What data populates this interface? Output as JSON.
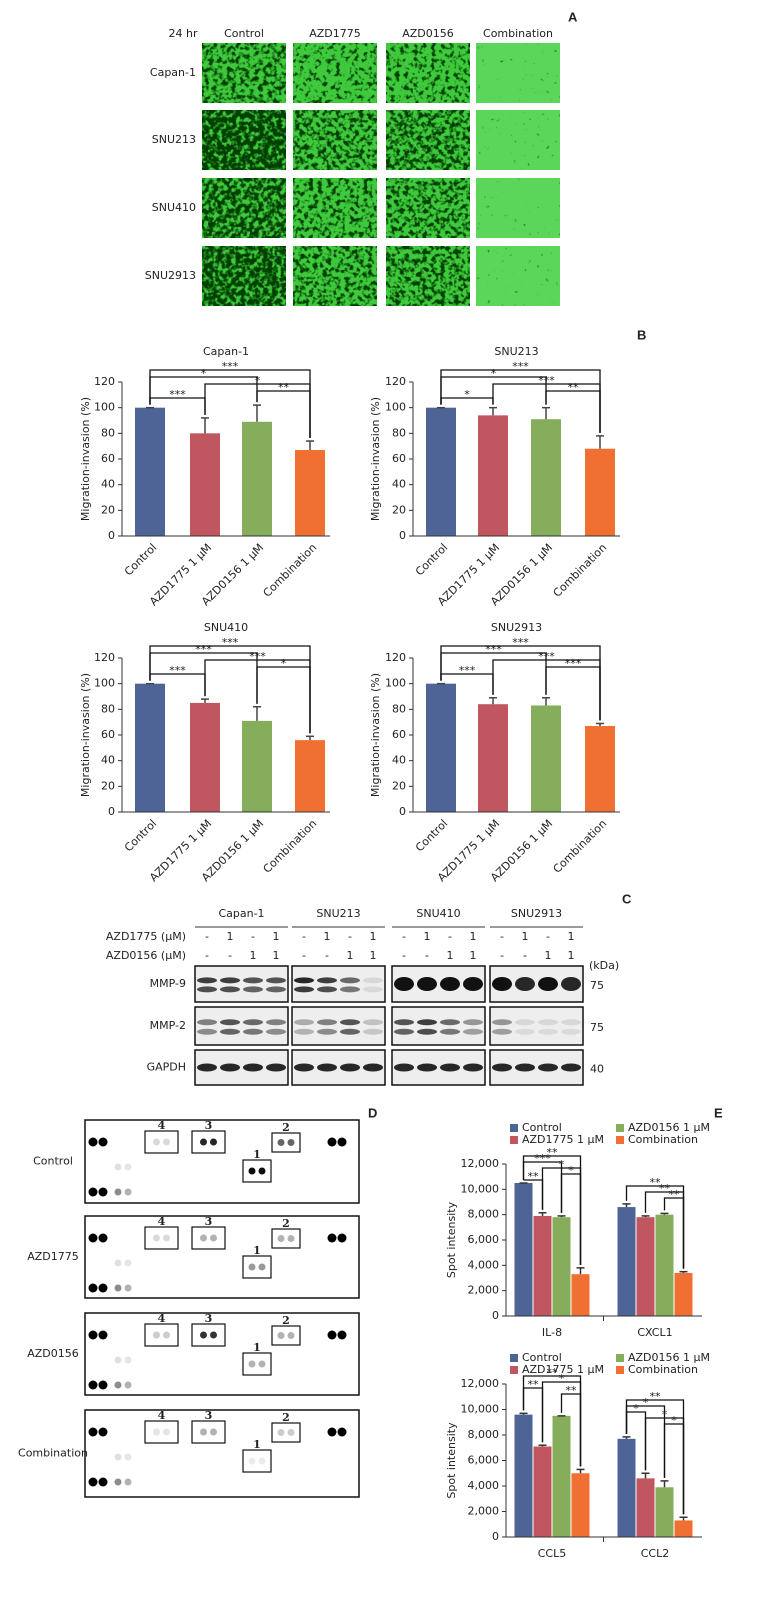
{
  "panel_a": {
    "label": "A",
    "time": "24 hr",
    "columns": [
      "Control",
      "AZD1775",
      "AZD0156",
      "Combination"
    ],
    "rows": [
      "Capan-1",
      "SNU213",
      "SNU410",
      "SNU2913"
    ]
  },
  "panel_b_label": "B",
  "chart_data": [
    {
      "type": "bar",
      "title": "Capan-1",
      "y_label": "Migration-invasion (%)",
      "categories": [
        "Control",
        "AZD1775 1 μM",
        "AZD0156 1 μM",
        "Combination"
      ],
      "values": [
        100,
        80,
        89,
        67
      ],
      "errors": [
        0,
        12,
        13,
        7
      ],
      "colors": [
        "#4e6497",
        "#c0565f",
        "#86ad5c",
        "#f07033"
      ],
      "ylim": [
        0,
        120
      ],
      "yticks": [
        0,
        20,
        40,
        60,
        80,
        100,
        120
      ],
      "significance": [
        {
          "label": "***",
          "bars": [
            0,
            3
          ]
        },
        {
          "label": "*",
          "bars": [
            0,
            2
          ]
        },
        {
          "label": "*",
          "bars": [
            1,
            3
          ]
        },
        {
          "label": "**",
          "bars": [
            2,
            3
          ]
        },
        {
          "label": "***",
          "bars": [
            0,
            1
          ]
        }
      ]
    },
    {
      "type": "bar",
      "title": "SNU213",
      "y_label": "Migration-invasion (%)",
      "categories": [
        "Control",
        "AZD1775 1 μM",
        "AZD0156 1 μM",
        "Combination"
      ],
      "values": [
        100,
        94,
        91,
        68
      ],
      "errors": [
        0,
        6,
        9,
        10
      ],
      "colors": [
        "#4e6497",
        "#c0565f",
        "#86ad5c",
        "#f07033"
      ],
      "ylim": [
        0,
        120
      ],
      "yticks": [
        0,
        20,
        40,
        60,
        80,
        100,
        120
      ],
      "significance": [
        {
          "label": "***",
          "bars": [
            0,
            3
          ]
        },
        {
          "label": "*",
          "bars": [
            0,
            2
          ]
        },
        {
          "label": "***",
          "bars": [
            1,
            3
          ]
        },
        {
          "label": "**",
          "bars": [
            2,
            3
          ]
        },
        {
          "label": "*",
          "bars": [
            0,
            1
          ]
        }
      ]
    },
    {
      "type": "bar",
      "title": "SNU410",
      "y_label": "Migration-invasion (%)",
      "categories": [
        "Control",
        "AZD1775 1 μM",
        "AZD0156 1 μM",
        "Combination"
      ],
      "values": [
        100,
        85,
        71,
        56
      ],
      "errors": [
        0,
        3,
        11,
        3
      ],
      "colors": [
        "#4e6497",
        "#c0565f",
        "#86ad5c",
        "#f07033"
      ],
      "ylim": [
        0,
        120
      ],
      "yticks": [
        0,
        20,
        40,
        60,
        80,
        100,
        120
      ],
      "significance": [
        {
          "label": "***",
          "bars": [
            0,
            3
          ]
        },
        {
          "label": "***",
          "bars": [
            0,
            2
          ]
        },
        {
          "label": "***",
          "bars": [
            1,
            3
          ]
        },
        {
          "label": "*",
          "bars": [
            2,
            3
          ]
        },
        {
          "label": "***",
          "bars": [
            0,
            1
          ]
        }
      ]
    },
    {
      "type": "bar",
      "title": "SNU2913",
      "y_label": "Migration-invasion (%)",
      "categories": [
        "Control",
        "AZD1775 1 μM",
        "AZD0156 1 μM",
        "Combination"
      ],
      "values": [
        100,
        84,
        83,
        67
      ],
      "errors": [
        0,
        5,
        6,
        2
      ],
      "colors": [
        "#4e6497",
        "#c0565f",
        "#86ad5c",
        "#f07033"
      ],
      "ylim": [
        0,
        120
      ],
      "yticks": [
        0,
        20,
        40,
        60,
        80,
        100,
        120
      ],
      "significance": [
        {
          "label": "***",
          "bars": [
            0,
            3
          ]
        },
        {
          "label": "***",
          "bars": [
            0,
            2
          ]
        },
        {
          "label": "***",
          "bars": [
            1,
            3
          ]
        },
        {
          "label": "***",
          "bars": [
            2,
            3
          ]
        },
        {
          "label": "***",
          "bars": [
            0,
            1
          ]
        }
      ]
    },
    {
      "type": "grouped_bar",
      "y_label": "Spot intensity",
      "categories": [
        "IL-8",
        "CXCL1"
      ],
      "series": [
        {
          "name": "Control",
          "color": "#4e6497",
          "values": [
            10500,
            8600
          ],
          "errors": [
            0,
            250
          ]
        },
        {
          "name": "AZD1775 1 μM",
          "color": "#c0565f",
          "values": [
            7900,
            7800
          ],
          "errors": [
            250,
            100
          ]
        },
        {
          "name": "AZD0156 1 μM",
          "color": "#86ad5c",
          "values": [
            7800,
            8000
          ],
          "errors": [
            100,
            100
          ]
        },
        {
          "name": "Combination",
          "color": "#f07033",
          "values": [
            3300,
            3400
          ],
          "errors": [
            500,
            100
          ]
        }
      ],
      "ylim": [
        0,
        12000
      ],
      "yticks": [
        0,
        {
          "value": 2000,
          "label": "2,000"
        },
        {
          "value": 4000,
          "label": "4,000"
        },
        {
          "value": 6000,
          "label": "6,000"
        },
        {
          "value": 8000,
          "label": "8,000"
        },
        {
          "value": 10000,
          "label": "10,000"
        },
        {
          "value": 12000,
          "label": "12,000"
        }
      ],
      "significance": [
        {
          "label": "**",
          "category": 0,
          "bars": [
            0,
            3
          ]
        },
        {
          "label": "***",
          "category": 0,
          "bars": [
            0,
            2
          ]
        },
        {
          "label": "*",
          "category": 0,
          "bars": [
            1,
            3
          ]
        },
        {
          "label": "*",
          "category": 0,
          "bars": [
            2,
            3
          ]
        },
        {
          "label": "**",
          "category": 0,
          "bars": [
            0,
            1
          ]
        },
        {
          "label": "**",
          "category": 1,
          "bars": [
            0,
            3
          ]
        },
        {
          "label": "**",
          "category": 1,
          "bars": [
            1,
            3
          ]
        },
        {
          "label": "**",
          "category": 1,
          "bars": [
            2,
            3
          ]
        }
      ]
    },
    {
      "type": "grouped_bar",
      "y_label": "Spot intensity",
      "categories": [
        "CCL5",
        "CCL2"
      ],
      "series": [
        {
          "name": "Control",
          "color": "#4e6497",
          "values": [
            9600,
            7700
          ],
          "errors": [
            100,
            150
          ]
        },
        {
          "name": "AZD1775 1 μM",
          "color": "#c0565f",
          "values": [
            7100,
            4600
          ],
          "errors": [
            100,
            400
          ]
        },
        {
          "name": "AZD0156 1 μM",
          "color": "#86ad5c",
          "values": [
            9500,
            3900
          ],
          "errors": [
            0,
            500
          ]
        },
        {
          "name": "Combination",
          "color": "#f07033",
          "values": [
            5000,
            1300
          ],
          "errors": [
            300,
            250
          ]
        }
      ],
      "ylim": [
        0,
        12000
      ],
      "yticks": [
        0,
        {
          "value": 2000,
          "label": "2,000"
        },
        {
          "value": 4000,
          "label": "4,000"
        },
        {
          "value": 6000,
          "label": "6,000"
        },
        {
          "value": 8000,
          "label": "8,000"
        },
        {
          "value": 10000,
          "label": "10,000"
        },
        {
          "value": 12000,
          "label": "12,000"
        }
      ],
      "significance": [
        {
          "label": "**",
          "category": 0,
          "bars": [
            0,
            3
          ]
        },
        {
          "label": "*",
          "category": 0,
          "bars": [
            1,
            3
          ]
        },
        {
          "label": "**",
          "category": 0,
          "bars": [
            0,
            1
          ]
        },
        {
          "label": "**",
          "category": 0,
          "bars": [
            2,
            3
          ]
        },
        {
          "label": "**",
          "category": 1,
          "bars": [
            0,
            3
          ]
        },
        {
          "label": "*",
          "category": 1,
          "bars": [
            0,
            2
          ]
        },
        {
          "label": "*",
          "category": 1,
          "bars": [
            0,
            1
          ]
        },
        {
          "label": "*",
          "category": 1,
          "bars": [
            1,
            3
          ]
        },
        {
          "label": "*",
          "category": 1,
          "bars": [
            2,
            3
          ]
        }
      ]
    }
  ],
  "panel_c": {
    "label": "C",
    "cell_lines": [
      "Capan-1",
      "SNU213",
      "SNU410",
      "SNU2913"
    ],
    "treatments": [
      {
        "name": "AZD1775 (μM)",
        "marks": [
          "-",
          "1",
          "-",
          "1"
        ]
      },
      {
        "name": "AZD0156 (μM)",
        "marks": [
          "-",
          "-",
          "1",
          "1"
        ]
      }
    ],
    "unit": "(kDa)",
    "proteins": [
      {
        "name": "MMP-9",
        "kda": 75
      },
      {
        "name": "MMP-2",
        "kda": 75
      },
      {
        "name": "GAPDH",
        "kda": 40
      }
    ]
  },
  "panel_d": {
    "label": "D",
    "rows": [
      {
        "label": "Control",
        "boxes": [
          4,
          3,
          2,
          1
        ]
      },
      {
        "label": "AZD1775",
        "boxes": [
          4,
          3,
          2,
          1
        ]
      },
      {
        "label": "AZD0156",
        "boxes": [
          4,
          3,
          2,
          1
        ]
      },
      {
        "label": "Combination",
        "boxes": [
          4,
          3,
          2,
          1
        ]
      }
    ]
  },
  "panel_e_label": "E"
}
